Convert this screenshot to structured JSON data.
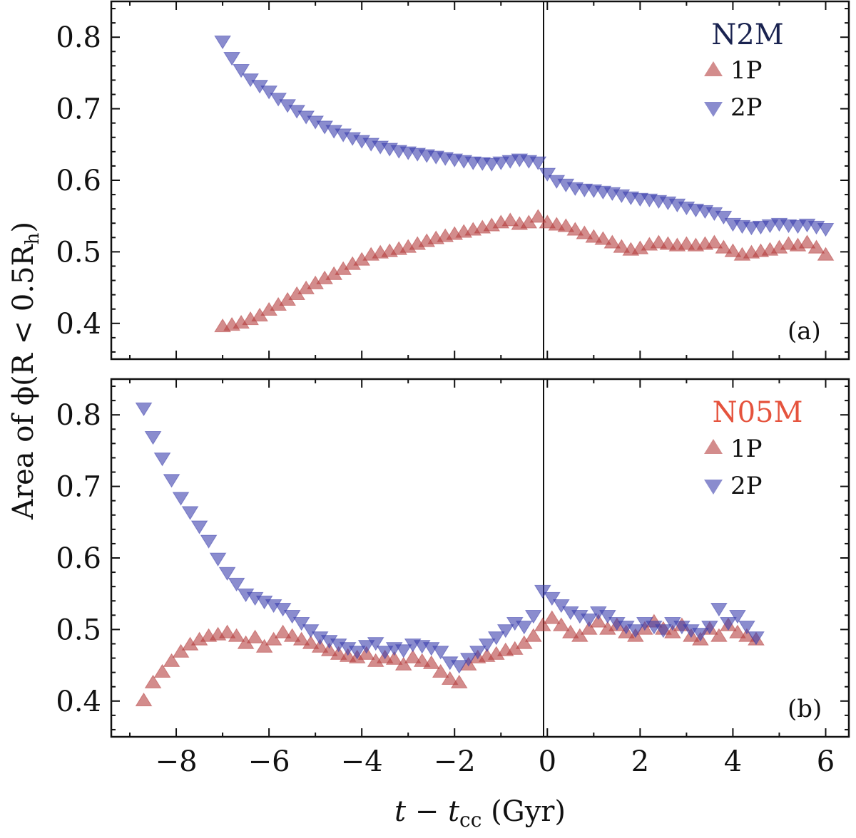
{
  "figure": {
    "ylabel": "Area of ϕ(R < 0.5R",
    "ylabel_sub": "h",
    "ylabel_close": ")",
    "xlabel_main": "t − t",
    "xlabel_sub": "cc",
    "xlabel_unit": " (Gyr)"
  },
  "chart_data": [
    {
      "type": "scatter",
      "panel_label": "(a)",
      "legend_title": "N2M",
      "legend_title_color": "#1a2350",
      "legend_position": "top-right",
      "xlim": [
        -9.4,
        6.5
      ],
      "ylim": [
        0.35,
        0.85
      ],
      "xticks": [
        -8,
        -6,
        -4,
        -2,
        0,
        2,
        4,
        6
      ],
      "xticklabels": [
        "−8",
        "−6",
        "−4",
        "−2",
        "0",
        "2",
        "4",
        "6"
      ],
      "yticks": [
        0.4,
        0.5,
        0.6,
        0.7,
        0.8
      ],
      "yticklabels": [
        "0.4",
        "0.5",
        "0.6",
        "0.7",
        "0.8"
      ],
      "vline_x": 0,
      "series": [
        {
          "name": "1P",
          "marker": "triangle-up",
          "color": "#b5403f",
          "x": [
            -7.0,
            -6.8,
            -6.6,
            -6.4,
            -6.2,
            -6.0,
            -5.8,
            -5.6,
            -5.4,
            -5.2,
            -5.0,
            -4.8,
            -4.6,
            -4.4,
            -4.2,
            -4.0,
            -3.8,
            -3.6,
            -3.4,
            -3.2,
            -3.0,
            -2.8,
            -2.6,
            -2.4,
            -2.2,
            -2.0,
            -1.8,
            -1.6,
            -1.4,
            -1.2,
            -1.0,
            -0.8,
            -0.6,
            -0.4,
            -0.2,
            0.0,
            0.2,
            0.4,
            0.6,
            0.8,
            1.0,
            1.2,
            1.4,
            1.6,
            1.8,
            2.0,
            2.2,
            2.4,
            2.6,
            2.8,
            3.0,
            3.2,
            3.4,
            3.6,
            3.8,
            4.0,
            4.2,
            4.4,
            4.6,
            4.8,
            5.0,
            5.2,
            5.4,
            5.6,
            5.8,
            6.0
          ],
          "y": [
            0.395,
            0.397,
            0.4,
            0.405,
            0.41,
            0.418,
            0.425,
            0.432,
            0.44,
            0.448,
            0.455,
            0.462,
            0.468,
            0.475,
            0.482,
            0.488,
            0.495,
            0.498,
            0.5,
            0.503,
            0.506,
            0.51,
            0.514,
            0.518,
            0.521,
            0.524,
            0.527,
            0.53,
            0.533,
            0.536,
            0.54,
            0.543,
            0.538,
            0.54,
            0.548,
            0.54,
            0.537,
            0.535,
            0.53,
            0.525,
            0.52,
            0.517,
            0.512,
            0.506,
            0.502,
            0.504,
            0.509,
            0.512,
            0.51,
            0.508,
            0.51,
            0.508,
            0.51,
            0.512,
            0.505,
            0.5,
            0.495,
            0.498,
            0.5,
            0.502,
            0.505,
            0.51,
            0.508,
            0.512,
            0.505,
            0.495
          ]
        },
        {
          "name": "2P",
          "marker": "triangle-down",
          "color": "#3c3fae",
          "x": [
            -7.0,
            -6.8,
            -6.6,
            -6.4,
            -6.2,
            -6.0,
            -5.8,
            -5.6,
            -5.4,
            -5.2,
            -5.0,
            -4.8,
            -4.6,
            -4.4,
            -4.2,
            -4.0,
            -3.8,
            -3.6,
            -3.4,
            -3.2,
            -3.0,
            -2.8,
            -2.6,
            -2.4,
            -2.2,
            -2.0,
            -1.8,
            -1.6,
            -1.4,
            -1.2,
            -1.0,
            -0.8,
            -0.6,
            -0.4,
            -0.2,
            0.0,
            0.2,
            0.4,
            0.6,
            0.8,
            1.0,
            1.2,
            1.4,
            1.6,
            1.8,
            2.0,
            2.2,
            2.4,
            2.6,
            2.8,
            3.0,
            3.2,
            3.4,
            3.6,
            3.8,
            4.0,
            4.2,
            4.4,
            4.6,
            4.8,
            5.0,
            5.2,
            5.4,
            5.6,
            5.8,
            6.0
          ],
          "y": [
            0.795,
            0.772,
            0.755,
            0.742,
            0.733,
            0.725,
            0.715,
            0.706,
            0.698,
            0.69,
            0.683,
            0.676,
            0.67,
            0.665,
            0.66,
            0.656,
            0.652,
            0.648,
            0.645,
            0.642,
            0.64,
            0.638,
            0.636,
            0.634,
            0.632,
            0.63,
            0.628,
            0.626,
            0.625,
            0.624,
            0.626,
            0.628,
            0.63,
            0.628,
            0.626,
            0.61,
            0.6,
            0.595,
            0.59,
            0.588,
            0.587,
            0.585,
            0.583,
            0.58,
            0.577,
            0.575,
            0.574,
            0.572,
            0.57,
            0.567,
            0.563,
            0.56,
            0.558,
            0.555,
            0.55,
            0.54,
            0.537,
            0.535,
            0.536,
            0.538,
            0.54,
            0.538,
            0.537,
            0.539,
            0.536,
            0.533
          ]
        }
      ]
    },
    {
      "type": "scatter",
      "panel_label": "(b)",
      "legend_title": "N05M",
      "legend_title_color": "#e5533d",
      "legend_position": "top-right",
      "xlim": [
        -9.4,
        6.5
      ],
      "ylim": [
        0.35,
        0.85
      ],
      "xticks": [
        -8,
        -6,
        -4,
        -2,
        0,
        2,
        4,
        6
      ],
      "xticklabels": [
        "−8",
        "−6",
        "−4",
        "−2",
        "0",
        "2",
        "4",
        "6"
      ],
      "yticks": [
        0.4,
        0.5,
        0.6,
        0.7,
        0.8
      ],
      "yticklabels": [
        "0.4",
        "0.5",
        "0.6",
        "0.7",
        "0.8"
      ],
      "vline_x": 0,
      "series": [
        {
          "name": "1P",
          "marker": "triangle-up",
          "color": "#b5403f",
          "x": [
            -8.7,
            -8.5,
            -8.3,
            -8.1,
            -7.9,
            -7.7,
            -7.5,
            -7.3,
            -7.1,
            -6.9,
            -6.7,
            -6.5,
            -6.3,
            -6.1,
            -5.9,
            -5.7,
            -5.5,
            -5.3,
            -5.1,
            -4.9,
            -4.7,
            -4.5,
            -4.3,
            -4.1,
            -3.9,
            -3.7,
            -3.5,
            -3.3,
            -3.1,
            -2.9,
            -2.7,
            -2.5,
            -2.3,
            -2.1,
            -1.9,
            -1.7,
            -1.5,
            -1.3,
            -1.1,
            -0.9,
            -0.7,
            -0.5,
            -0.3,
            -0.1,
            0.1,
            0.3,
            0.5,
            0.7,
            0.9,
            1.1,
            1.3,
            1.5,
            1.7,
            1.9,
            2.1,
            2.3,
            2.5,
            2.7,
            2.9,
            3.1,
            3.3,
            3.5,
            3.7,
            3.9,
            4.1,
            4.3,
            4.5
          ],
          "y": [
            0.4,
            0.425,
            0.44,
            0.455,
            0.468,
            0.478,
            0.485,
            0.49,
            0.492,
            0.495,
            0.49,
            0.48,
            0.488,
            0.475,
            0.485,
            0.495,
            0.49,
            0.485,
            0.48,
            0.475,
            0.47,
            0.465,
            0.462,
            0.46,
            0.465,
            0.455,
            0.46,
            0.458,
            0.45,
            0.46,
            0.455,
            0.452,
            0.44,
            0.43,
            0.425,
            0.45,
            0.46,
            0.462,
            0.465,
            0.47,
            0.472,
            0.48,
            0.49,
            0.505,
            0.515,
            0.505,
            0.495,
            0.49,
            0.5,
            0.51,
            0.5,
            0.505,
            0.495,
            0.49,
            0.5,
            0.51,
            0.5,
            0.495,
            0.505,
            0.49,
            0.485,
            0.5,
            0.49,
            0.505,
            0.495,
            0.49,
            0.485
          ]
        },
        {
          "name": "2P",
          "marker": "triangle-down",
          "color": "#3c3fae",
          "x": [
            -8.7,
            -8.5,
            -8.3,
            -8.1,
            -7.9,
            -7.7,
            -7.5,
            -7.3,
            -7.1,
            -6.9,
            -6.7,
            -6.5,
            -6.3,
            -6.1,
            -5.9,
            -5.7,
            -5.5,
            -5.3,
            -5.1,
            -4.9,
            -4.7,
            -4.5,
            -4.3,
            -4.1,
            -3.9,
            -3.7,
            -3.5,
            -3.3,
            -3.1,
            -2.9,
            -2.7,
            -2.5,
            -2.3,
            -2.1,
            -1.9,
            -1.7,
            -1.5,
            -1.3,
            -1.1,
            -0.9,
            -0.7,
            -0.5,
            -0.3,
            -0.1,
            0.1,
            0.3,
            0.5,
            0.7,
            0.9,
            1.1,
            1.3,
            1.5,
            1.7,
            1.9,
            2.1,
            2.3,
            2.5,
            2.7,
            2.9,
            3.1,
            3.3,
            3.5,
            3.7,
            3.9,
            4.1,
            4.3,
            4.5
          ],
          "y": [
            0.81,
            0.77,
            0.74,
            0.71,
            0.685,
            0.665,
            0.645,
            0.625,
            0.6,
            0.58,
            0.565,
            0.55,
            0.545,
            0.54,
            0.535,
            0.53,
            0.52,
            0.51,
            0.5,
            0.49,
            0.485,
            0.48,
            0.475,
            0.47,
            0.478,
            0.482,
            0.47,
            0.475,
            0.472,
            0.48,
            0.478,
            0.475,
            0.47,
            0.455,
            0.45,
            0.46,
            0.47,
            0.48,
            0.49,
            0.5,
            0.51,
            0.505,
            0.52,
            0.555,
            0.545,
            0.535,
            0.525,
            0.52,
            0.515,
            0.525,
            0.52,
            0.51,
            0.505,
            0.5,
            0.51,
            0.505,
            0.5,
            0.51,
            0.505,
            0.5,
            0.495,
            0.505,
            0.53,
            0.51,
            0.52,
            0.505,
            0.49
          ]
        }
      ]
    }
  ]
}
